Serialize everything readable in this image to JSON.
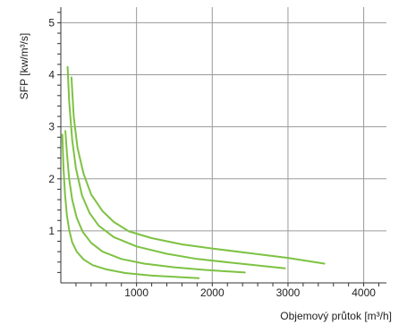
{
  "chart_data": {
    "type": "line",
    "xlabel": "Objemový průtok [m³/h]",
    "ylabel": "SFP [kw/m³/s]",
    "xlim": [
      0,
      4300
    ],
    "ylim": [
      0,
      5.3
    ],
    "x_ticks": [
      "1000",
      "2000",
      "3000",
      "4000"
    ],
    "y_ticks": [
      "1",
      "2",
      "3",
      "4",
      "5"
    ],
    "grid": true,
    "line_color": "#7dc242",
    "series": [
      {
        "x": [
          140,
          170,
          220,
          300,
          400,
          550,
          700,
          900,
          1200,
          1600,
          2000,
          2500,
          3000,
          3480
        ],
        "y": [
          3.95,
          3.2,
          2.6,
          2.1,
          1.7,
          1.38,
          1.17,
          0.99,
          0.86,
          0.74,
          0.66,
          0.57,
          0.48,
          0.37
        ]
      },
      {
        "x": [
          90,
          110,
          150,
          200,
          280,
          380,
          500,
          700,
          1000,
          1400,
          1800,
          2300,
          2960
        ],
        "y": [
          4.15,
          3.5,
          2.75,
          2.2,
          1.68,
          1.34,
          1.1,
          0.88,
          0.7,
          0.56,
          0.46,
          0.38,
          0.28
        ]
      },
      {
        "x": [
          60,
          80,
          110,
          150,
          210,
          290,
          400,
          550,
          800,
          1100,
          1500,
          1900,
          2430
        ],
        "y": [
          2.92,
          2.5,
          2.0,
          1.6,
          1.25,
          0.98,
          0.77,
          0.6,
          0.46,
          0.37,
          0.3,
          0.25,
          0.2
        ]
      },
      {
        "x": [
          20,
          35,
          55,
          80,
          110,
          150,
          210,
          300,
          420,
          600,
          850,
          1200,
          1820
        ],
        "y": [
          2.85,
          2.2,
          1.7,
          1.3,
          1.02,
          0.78,
          0.6,
          0.45,
          0.34,
          0.26,
          0.19,
          0.14,
          0.09
        ]
      }
    ]
  }
}
